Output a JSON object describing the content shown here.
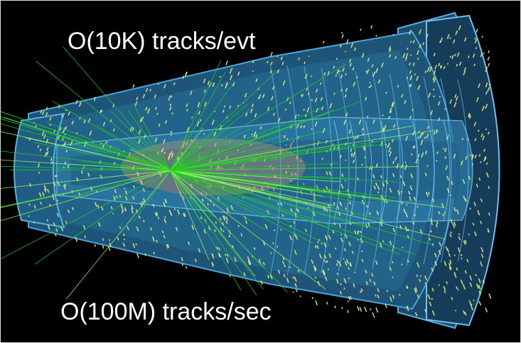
{
  "labels": {
    "top": "O(10K) tracks/evt",
    "bottom": "O(100M) tracks/sec"
  }
}
